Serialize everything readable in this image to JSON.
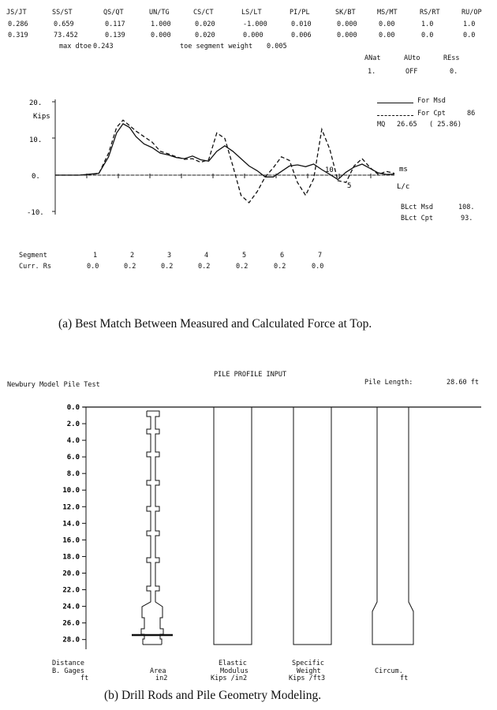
{
  "top_table": {
    "headers": [
      "JS/JT",
      "SS/ST",
      "QS/QT",
      "UN/TG",
      "CS/CT",
      "LS/LT",
      "PI/PL",
      "SK/BT",
      "MS/MT",
      "RS/RT",
      "RU/OP"
    ],
    "rows": [
      [
        "0.286",
        "0.659",
        "0.117",
        "1.000",
        "0.020",
        "-1.000",
        "0.010",
        "0.000",
        "0.00",
        "1.0",
        "1.0"
      ],
      [
        "0.319",
        "73.452",
        "0.139",
        "0.000",
        "0.020",
        "0.000",
        "0.006",
        "0.000",
        "0.00",
        "0.0",
        "0.0"
      ]
    ],
    "max_dtoe_label": "max dtoe",
    "max_dtoe_value": "0.243",
    "toe_weight_label": "toe segment weight",
    "toe_weight_value": "0.005"
  },
  "status": {
    "headers": [
      "ANat",
      "AUto",
      "REss"
    ],
    "values": [
      "1.",
      "OFF",
      "0."
    ]
  },
  "legend": {
    "msd": "For  Msd",
    "cpt": "For  Cpt",
    "cpt_value": "86",
    "mq_label": "MQ",
    "mq_value": "26.65",
    "mq_paren": "( 25.86)"
  },
  "blct": {
    "msd_label": "BLct Msd",
    "msd_value": "108.",
    "cpt_label": "BLct Cpt",
    "cpt_value": "93."
  },
  "chart_data": {
    "type": "line",
    "ylabel": "Kips",
    "y_ticks": [
      "20.",
      "10.",
      "0.",
      "-10."
    ],
    "ylim": [
      -10,
      20
    ],
    "xlabel_ms": "ms",
    "xlabel_lc": "L/c",
    "ms_tick": "10",
    "lc_tick": "5",
    "xlim_ms": [
      -3,
      18
    ],
    "series": [
      {
        "name": "Msd",
        "style": "solid",
        "x": [
          -3,
          -1.5,
          -0.3,
          0.3,
          0.8,
          1.2,
          1.6,
          2,
          2.5,
          3,
          3.5,
          4,
          4.5,
          5,
          5.5,
          6,
          6.5,
          7,
          7.5,
          8,
          8.5,
          9,
          9.5,
          10,
          10.5,
          11,
          11.5,
          12,
          12.5,
          13,
          13.5,
          14,
          14.5,
          15,
          15.5,
          16,
          16.5,
          17,
          17.5,
          18
        ],
        "y": [
          0,
          0,
          0.5,
          5,
          11.5,
          14,
          13,
          10.5,
          8.5,
          7.5,
          6,
          5.5,
          4.8,
          4.5,
          5.2,
          4.2,
          3.8,
          6.5,
          8,
          6.5,
          4.5,
          2.5,
          1.2,
          -0.5,
          -0.5,
          1,
          2.5,
          2.8,
          2.3,
          3,
          1.5,
          0.2,
          -1.2,
          0.8,
          2.2,
          3,
          1.8,
          0.6,
          0.2,
          0.3
        ]
      },
      {
        "name": "Cpt",
        "style": "dashed",
        "x": [
          -3,
          -1.5,
          -0.3,
          0.3,
          0.8,
          1.2,
          1.6,
          2,
          2.5,
          3,
          3.5,
          4,
          4.5,
          5,
          5.5,
          6,
          6.5,
          7,
          7.5,
          8,
          8.5,
          9,
          9.5,
          10,
          10.5,
          11,
          11.5,
          12,
          12.5,
          13,
          13.5,
          14,
          14.5,
          15,
          15.5,
          16,
          16.5,
          17,
          17.5,
          18
        ],
        "y": [
          0,
          0,
          0.4,
          6,
          13,
          15,
          13.5,
          12,
          10.5,
          9,
          6.5,
          5.8,
          5,
          4.3,
          4.5,
          3.5,
          4.2,
          11.5,
          10,
          2.5,
          -5.5,
          -7.5,
          -4.5,
          -0.5,
          2,
          5,
          4,
          -2,
          -5.5,
          -1,
          12.5,
          7,
          -1.5,
          -2,
          2.5,
          4.5,
          2,
          0.2,
          1,
          0.5
        ]
      }
    ]
  },
  "segments": {
    "label": "Segment",
    "numbers": [
      "1",
      "2",
      "3",
      "4",
      "5",
      "6",
      "7"
    ],
    "rs_label": "Curr. Rs",
    "rs_values": [
      "0.0",
      "0.2",
      "0.2",
      "0.2",
      "0.2",
      "0.2",
      "0.0"
    ]
  },
  "captions": {
    "a": "(a)  Best Match Between Measured and Calculated Force at Top.",
    "b": "(b) Drill Rods and Pile Geometry Modeling."
  },
  "profile": {
    "title": "PILE PROFILE INPUT",
    "test_name": "Newbury Model Pile Test",
    "length_label": "Pile Length:",
    "length_value": "28.60 ft",
    "depth_ticks": [
      "0.0",
      "2.0",
      "4.0",
      "6.0",
      "8.0",
      "10.0",
      "12.0",
      "14.0",
      "16.0",
      "18.0",
      "20.0",
      "22.0",
      "24.0",
      "26.0",
      "28.0"
    ],
    "column_labels": {
      "distance": [
        "Distance",
        "B. Gages",
        "ft"
      ],
      "area": [
        "Area",
        "in2"
      ],
      "modulus": [
        "Elastic",
        "Modulus",
        "Kips /in2"
      ],
      "weight": [
        "Specific",
        "Weight",
        "Kips /ft3"
      ],
      "circum": [
        "Circum.",
        "ft"
      ]
    }
  }
}
